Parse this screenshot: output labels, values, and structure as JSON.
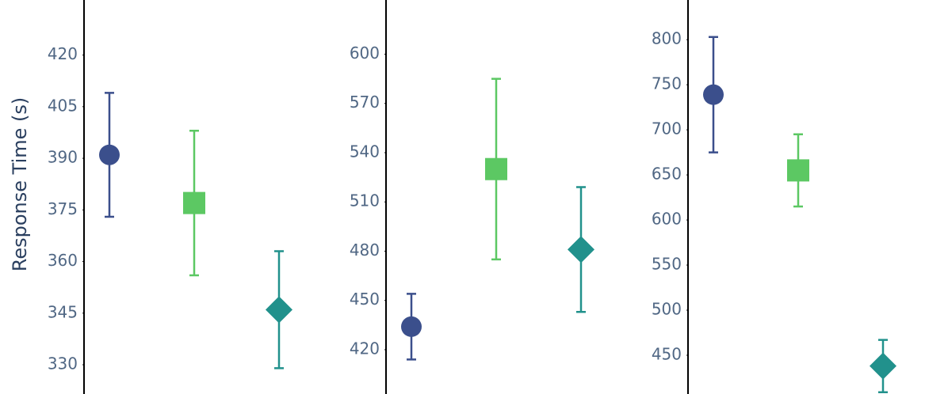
{
  "chart_data": [
    {
      "type": "scatter",
      "y_title": "Response Time (s)",
      "categories": [
        null,
        null,
        null
      ],
      "ylim": [
        321.5,
        436
      ],
      "yticks": [
        330,
        345,
        360,
        375,
        390,
        405,
        420
      ],
      "series": [
        {
          "color": "#3b4f8c",
          "symbol": "circle",
          "values": [
            391,
            null,
            null
          ],
          "errors": [
            18,
            null,
            null
          ]
        },
        {
          "color": "#5cc863",
          "symbol": "square",
          "values": [
            null,
            377,
            null
          ],
          "errors": [
            null,
            21,
            null
          ]
        },
        {
          "color": "#21918c",
          "symbol": "diamond",
          "values": [
            null,
            null,
            346
          ],
          "errors": [
            null,
            null,
            17
          ]
        }
      ]
    },
    {
      "type": "scatter",
      "categories": [
        null,
        null,
        null
      ],
      "ylim": [
        393,
        633
      ],
      "yticks": [
        420,
        450,
        480,
        510,
        540,
        570,
        600
      ],
      "series": [
        {
          "color": "#3b4f8c",
          "symbol": "circle",
          "values": [
            434,
            null,
            null
          ],
          "errors": [
            20,
            null,
            null
          ]
        },
        {
          "color": "#5cc863",
          "symbol": "square",
          "values": [
            null,
            530,
            null
          ],
          "errors": [
            null,
            55,
            null
          ]
        },
        {
          "color": "#21918c",
          "symbol": "diamond",
          "values": [
            null,
            null,
            481
          ],
          "errors": [
            null,
            null,
            38
          ]
        }
      ]
    },
    {
      "type": "scatter",
      "categories": [
        null,
        null,
        null
      ],
      "ylim": [
        407,
        844
      ],
      "yticks": [
        450,
        500,
        550,
        600,
        650,
        700,
        750,
        800
      ],
      "series": [
        {
          "color": "#3b4f8c",
          "symbol": "circle",
          "values": [
            739,
            null,
            null
          ],
          "errors": [
            64,
            null,
            null
          ]
        },
        {
          "color": "#5cc863",
          "symbol": "square",
          "values": [
            null,
            655,
            null
          ],
          "errors": [
            null,
            40,
            null
          ]
        },
        {
          "color": "#21918c",
          "symbol": "diamond",
          "values": [
            null,
            null,
            438
          ],
          "errors": [
            null,
            null,
            29
          ]
        }
      ]
    }
  ]
}
